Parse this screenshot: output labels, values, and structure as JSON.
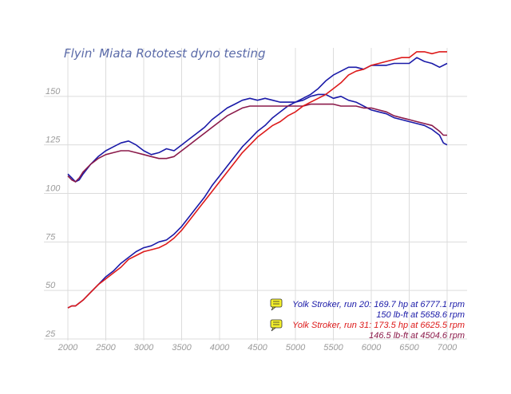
{
  "chart_data": {
    "type": "line",
    "title": "Flyin' Miata Rototest dyno testing",
    "xlabel": "",
    "ylabel": "",
    "xlim": [
      2000,
      7000
    ],
    "ylim": [
      25,
      175
    ],
    "x_ticks": [
      2000,
      2500,
      3000,
      3500,
      4000,
      4500,
      5000,
      5500,
      6000,
      6500,
      7000
    ],
    "y_ticks": [
      25,
      50,
      75,
      100,
      125,
      150
    ],
    "grid": true,
    "series": [
      {
        "name": "Yolk Stroker, run 20 torque",
        "unit": "lb-ft",
        "color": "#1a1aa8",
        "x": [
          2000,
          2050,
          2100,
          2150,
          2200,
          2300,
          2400,
          2500,
          2600,
          2700,
          2800,
          2900,
          3000,
          3100,
          3200,
          3300,
          3400,
          3500,
          3600,
          3700,
          3800,
          3900,
          4000,
          4100,
          4200,
          4300,
          4400,
          4500,
          4600,
          4700,
          4800,
          4900,
          5000,
          5100,
          5200,
          5300,
          5400,
          5500,
          5600,
          5700,
          5800,
          5900,
          6000,
          6100,
          6200,
          6300,
          6400,
          6500,
          6600,
          6700,
          6800,
          6900,
          6950,
          7000
        ],
        "y": [
          110,
          108,
          106,
          107,
          110,
          115,
          119,
          122,
          124,
          126,
          127,
          125,
          122,
          120,
          121,
          123,
          122,
          125,
          128,
          131,
          134,
          138,
          141,
          144,
          146,
          148,
          149,
          148,
          149,
          148,
          147,
          147,
          147,
          148,
          150,
          151,
          151,
          149,
          150,
          148,
          147,
          145,
          143,
          142,
          141,
          139,
          138,
          137,
          136,
          135,
          133,
          130,
          126,
          125
        ]
      },
      {
        "name": "Yolk Stroker, run 20 power",
        "unit": "hp",
        "color": "#1a1aa8",
        "x": [
          2000,
          2050,
          2100,
          2200,
          2300,
          2400,
          2500,
          2600,
          2700,
          2800,
          2900,
          3000,
          3100,
          3200,
          3300,
          3400,
          3500,
          3600,
          3700,
          3800,
          3900,
          4000,
          4100,
          4200,
          4300,
          4400,
          4500,
          4600,
          4700,
          4800,
          4900,
          5000,
          5100,
          5200,
          5300,
          5400,
          5500,
          5600,
          5700,
          5800,
          5900,
          6000,
          6100,
          6200,
          6300,
          6400,
          6500,
          6600,
          6700,
          6800,
          6900,
          7000
        ],
        "y": [
          41,
          42,
          42,
          45,
          49,
          53,
          57,
          60,
          64,
          67,
          70,
          72,
          73,
          75,
          76,
          79,
          83,
          88,
          93,
          98,
          104,
          109,
          114,
          119,
          124,
          128,
          132,
          135,
          139,
          142,
          145,
          147,
          149,
          151,
          154,
          158,
          161,
          163,
          165,
          165,
          164,
          166,
          166,
          166,
          167,
          167,
          167,
          170,
          168,
          167,
          165,
          167
        ]
      },
      {
        "name": "Yolk Stroker, run 31 torque",
        "unit": "lb-ft",
        "color": "#8b1a4a",
        "x": [
          2000,
          2050,
          2100,
          2150,
          2200,
          2300,
          2400,
          2500,
          2600,
          2700,
          2800,
          2900,
          3000,
          3100,
          3200,
          3300,
          3400,
          3500,
          3600,
          3700,
          3800,
          3900,
          4000,
          4100,
          4200,
          4300,
          4400,
          4500,
          4600,
          4700,
          4800,
          4900,
          5000,
          5100,
          5200,
          5300,
          5400,
          5500,
          5600,
          5700,
          5800,
          5900,
          6000,
          6100,
          6200,
          6300,
          6400,
          6500,
          6600,
          6700,
          6800,
          6900,
          6950,
          7000
        ],
        "y": [
          109,
          107,
          106,
          108,
          111,
          115,
          118,
          120,
          121,
          122,
          122,
          121,
          120,
          119,
          118,
          118,
          119,
          122,
          125,
          128,
          131,
          134,
          137,
          140,
          142,
          144,
          145,
          145,
          145,
          145,
          145,
          145,
          145,
          145,
          146,
          146,
          146,
          146,
          145,
          145,
          145,
          144,
          144,
          143,
          142,
          140,
          139,
          138,
          137,
          136,
          135,
          132,
          130,
          130
        ]
      },
      {
        "name": "Yolk Stroker, run 31 power",
        "unit": "hp",
        "color": "#dd1a1a",
        "x": [
          2000,
          2050,
          2100,
          2200,
          2300,
          2400,
          2500,
          2600,
          2700,
          2800,
          2900,
          3000,
          3100,
          3200,
          3300,
          3400,
          3500,
          3600,
          3700,
          3800,
          3900,
          4000,
          4100,
          4200,
          4300,
          4400,
          4500,
          4600,
          4700,
          4800,
          4900,
          5000,
          5100,
          5200,
          5300,
          5400,
          5500,
          5600,
          5700,
          5800,
          5900,
          6000,
          6100,
          6200,
          6300,
          6400,
          6500,
          6600,
          6700,
          6800,
          6900,
          7000
        ],
        "y": [
          41,
          42,
          42,
          45,
          49,
          53,
          56,
          59,
          62,
          66,
          68,
          70,
          71,
          72,
          74,
          77,
          81,
          86,
          91,
          96,
          101,
          106,
          111,
          116,
          121,
          125,
          129,
          132,
          135,
          137,
          140,
          142,
          145,
          147,
          149,
          151,
          154,
          157,
          161,
          163,
          164,
          166,
          167,
          168,
          169,
          170,
          170,
          173,
          173,
          172,
          173,
          173
        ]
      }
    ],
    "legend_position": "bottom-right",
    "legend": [
      {
        "icon": "note-icon",
        "color": "#1a1aa8",
        "lines": [
          "Yolk Stroker, run 20: 169.7 hp at 6777.1 rpm",
          "150 lb-ft at 5658.6 rpm"
        ]
      },
      {
        "icon": "note-icon",
        "color": "#dd1a1a",
        "lines": [
          "Yolk Stroker, run 31: 173.5 hp at 6625.5 rpm",
          "146.5 lb-ft at 4504.6 rpm"
        ]
      }
    ]
  }
}
